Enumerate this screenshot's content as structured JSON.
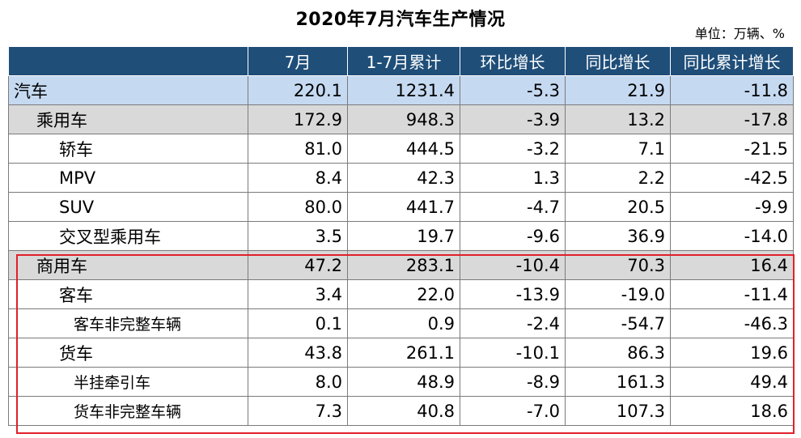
{
  "title": "2020年7月汽车生产情况",
  "unit": "单位：万辆、%",
  "columns": [
    "",
    "7月",
    "1-7月累计",
    "环比增长",
    "同比增长",
    "同比累计增长"
  ],
  "rows": [
    {
      "name": "汽车",
      "level": 0,
      "style": "auto",
      "values": [
        "220.1",
        "1231.4",
        "-5.3",
        "21.9",
        "-11.8"
      ]
    },
    {
      "name": "乘用车",
      "level": 1,
      "style": "gray",
      "values": [
        "172.9",
        "948.3",
        "-3.9",
        "13.2",
        "-17.8"
      ]
    },
    {
      "name": "轿车",
      "level": 2,
      "style": "white",
      "values": [
        "81.0",
        "444.5",
        "-3.2",
        "7.1",
        "-21.5"
      ]
    },
    {
      "name": "MPV",
      "level": 2,
      "style": "white",
      "values": [
        "8.4",
        "42.3",
        "1.3",
        "2.2",
        "-42.5"
      ]
    },
    {
      "name": "SUV",
      "level": 2,
      "style": "white",
      "values": [
        "80.0",
        "441.7",
        "-4.7",
        "20.5",
        "-9.9"
      ]
    },
    {
      "name": "交叉型乘用车",
      "level": 2,
      "style": "white",
      "values": [
        "3.5",
        "19.7",
        "-9.6",
        "36.9",
        "-14.0"
      ]
    },
    {
      "name": "商用车",
      "level": 1,
      "style": "gray",
      "values": [
        "47.2",
        "283.1",
        "-10.4",
        "70.3",
        "16.4"
      ]
    },
    {
      "name": "客车",
      "level": 2,
      "style": "white",
      "values": [
        "3.4",
        "22.0",
        "-13.9",
        "-19.0",
        "-11.4"
      ]
    },
    {
      "name": "客车非完整车辆",
      "level": 3,
      "style": "white",
      "values": [
        "0.1",
        "0.9",
        "-2.4",
        "-54.7",
        "-46.3"
      ]
    },
    {
      "name": "货车",
      "level": 2,
      "style": "white",
      "values": [
        "43.8",
        "261.1",
        "-10.1",
        "86.3",
        "19.6"
      ]
    },
    {
      "name": "半挂牵引车",
      "level": 3,
      "style": "white",
      "values": [
        "8.0",
        "48.9",
        "-8.9",
        "161.3",
        "49.4"
      ]
    },
    {
      "name": "货车非完整车辆",
      "level": 3,
      "style": "white",
      "values": [
        "7.3",
        "40.8",
        "-7.0",
        "107.3",
        "18.6"
      ]
    }
  ],
  "colors": {
    "header": "#1f4e79",
    "auto_row": "#c5d9f1",
    "gray_row": "#d9d9d9",
    "highlight_box": "#e0202a"
  }
}
